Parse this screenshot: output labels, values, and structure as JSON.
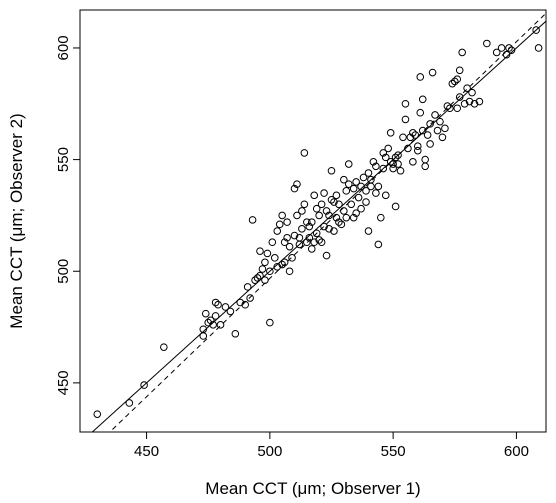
{
  "chart_data": {
    "type": "scatter",
    "title": "",
    "xlabel": "Mean CCT (μm; Observer 1)",
    "ylabel": "Mean CCT (μm; Observer 2)",
    "xlim": [
      423,
      612
    ],
    "ylim": [
      428,
      617
    ],
    "xticks": [
      450,
      500,
      550,
      600
    ],
    "yticks": [
      450,
      500,
      550,
      600
    ],
    "grid": false,
    "legend": "none",
    "point_style": "open-circle",
    "lines": [
      {
        "style": "solid",
        "slope": 1.0,
        "intercept": 0
      },
      {
        "style": "dashed",
        "slope": 1.06,
        "intercept": -33.2
      }
    ],
    "points": [
      [
        430,
        436
      ],
      [
        443,
        441
      ],
      [
        449,
        449
      ],
      [
        457,
        466
      ],
      [
        473,
        471
      ],
      [
        473,
        474
      ],
      [
        474,
        481
      ],
      [
        475,
        477
      ],
      [
        476,
        478
      ],
      [
        477,
        476
      ],
      [
        478,
        480
      ],
      [
        478,
        486
      ],
      [
        479,
        485
      ],
      [
        480,
        476
      ],
      [
        482,
        484
      ],
      [
        484,
        482
      ],
      [
        486,
        472
      ],
      [
        488,
        486
      ],
      [
        490,
        485
      ],
      [
        491,
        493
      ],
      [
        492,
        488
      ],
      [
        493,
        523
      ],
      [
        494,
        496
      ],
      [
        495,
        497
      ],
      [
        496,
        498
      ],
      [
        496,
        509
      ],
      [
        497,
        501
      ],
      [
        498,
        496
      ],
      [
        498,
        504
      ],
      [
        499,
        508
      ],
      [
        500,
        477
      ],
      [
        500,
        500
      ],
      [
        501,
        513
      ],
      [
        502,
        506
      ],
      [
        503,
        502
      ],
      [
        503,
        518
      ],
      [
        504,
        521
      ],
      [
        505,
        503
      ],
      [
        505,
        525
      ],
      [
        506,
        504
      ],
      [
        506,
        513
      ],
      [
        507,
        515
      ],
      [
        507,
        522
      ],
      [
        508,
        500
      ],
      [
        508,
        511
      ],
      [
        509,
        506
      ],
      [
        510,
        516
      ],
      [
        510,
        537
      ],
      [
        511,
        539
      ],
      [
        511,
        525
      ],
      [
        512,
        515
      ],
      [
        512,
        512
      ],
      [
        513,
        527
      ],
      [
        513,
        519
      ],
      [
        514,
        553
      ],
      [
        514,
        530
      ],
      [
        515,
        513
      ],
      [
        515,
        522
      ],
      [
        516,
        515
      ],
      [
        516,
        520
      ],
      [
        517,
        522
      ],
      [
        517,
        510
      ],
      [
        518,
        513
      ],
      [
        518,
        534
      ],
      [
        519,
        528
      ],
      [
        519,
        517
      ],
      [
        520,
        514
      ],
      [
        520,
        525
      ],
      [
        521,
        530
      ],
      [
        521,
        513
      ],
      [
        522,
        520
      ],
      [
        522,
        535
      ],
      [
        523,
        507
      ],
      [
        523,
        527
      ],
      [
        524,
        525
      ],
      [
        524,
        519
      ],
      [
        525,
        532
      ],
      [
        525,
        545
      ],
      [
        526,
        531
      ],
      [
        526,
        518
      ],
      [
        527,
        524
      ],
      [
        527,
        534
      ],
      [
        528,
        522
      ],
      [
        528,
        530
      ],
      [
        529,
        521
      ],
      [
        530,
        527
      ],
      [
        530,
        541
      ],
      [
        531,
        536
      ],
      [
        531,
        524
      ],
      [
        532,
        548
      ],
      [
        532,
        539
      ],
      [
        533,
        530
      ],
      [
        534,
        537
      ],
      [
        534,
        524
      ],
      [
        535,
        526
      ],
      [
        535,
        540
      ],
      [
        536,
        533
      ],
      [
        537,
        538
      ],
      [
        537,
        528
      ],
      [
        538,
        542
      ],
      [
        539,
        536
      ],
      [
        539,
        531
      ],
      [
        540,
        544
      ],
      [
        540,
        518
      ],
      [
        541,
        541
      ],
      [
        541,
        538
      ],
      [
        542,
        549
      ],
      [
        543,
        547
      ],
      [
        543,
        535
      ],
      [
        544,
        512
      ],
      [
        544,
        538
      ],
      [
        545,
        524
      ],
      [
        546,
        553
      ],
      [
        546,
        546
      ],
      [
        547,
        551
      ],
      [
        547,
        534
      ],
      [
        548,
        555
      ],
      [
        549,
        549
      ],
      [
        549,
        562
      ],
      [
        550,
        546
      ],
      [
        550,
        548
      ],
      [
        551,
        529
      ],
      [
        551,
        551
      ],
      [
        552,
        552
      ],
      [
        552,
        548
      ],
      [
        553,
        545
      ],
      [
        554,
        560
      ],
      [
        555,
        568
      ],
      [
        555,
        575
      ],
      [
        556,
        555
      ],
      [
        557,
        560
      ],
      [
        558,
        549
      ],
      [
        558,
        562
      ],
      [
        559,
        561
      ],
      [
        560,
        554
      ],
      [
        560,
        556
      ],
      [
        561,
        571
      ],
      [
        561,
        587
      ],
      [
        562,
        577
      ],
      [
        562,
        563
      ],
      [
        563,
        547
      ],
      [
        563,
        550
      ],
      [
        564,
        561
      ],
      [
        565,
        566
      ],
      [
        565,
        557
      ],
      [
        566,
        589
      ],
      [
        567,
        570
      ],
      [
        568,
        563
      ],
      [
        569,
        567
      ],
      [
        570,
        560
      ],
      [
        571,
        564
      ],
      [
        572,
        574
      ],
      [
        573,
        573
      ],
      [
        574,
        584
      ],
      [
        575,
        585
      ],
      [
        576,
        586
      ],
      [
        576,
        573
      ],
      [
        577,
        590
      ],
      [
        577,
        578
      ],
      [
        578,
        598
      ],
      [
        579,
        575
      ],
      [
        580,
        582
      ],
      [
        581,
        576
      ],
      [
        582,
        580
      ],
      [
        583,
        575
      ],
      [
        585,
        576
      ],
      [
        588,
        602
      ],
      [
        592,
        598
      ],
      [
        594,
        600
      ],
      [
        596,
        597
      ],
      [
        597,
        600
      ],
      [
        598,
        599
      ],
      [
        608,
        608
      ],
      [
        609,
        600
      ]
    ]
  }
}
